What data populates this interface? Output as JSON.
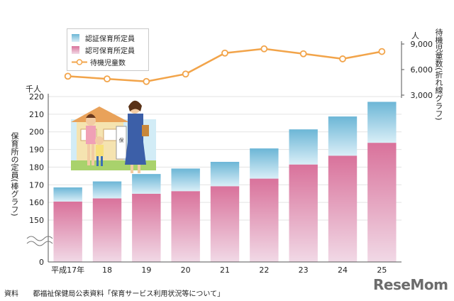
{
  "chart_data": {
    "type": "bar",
    "left_unit": "千人",
    "left_axis_label": "保育所の定員(棒グラフ)",
    "right_unit": "人",
    "right_axis_label": "待機児童数(折れ線グラフ)",
    "categories": [
      "平成17年",
      "18",
      "19",
      "20",
      "21",
      "22",
      "23",
      "24",
      "25"
    ],
    "y_ticks": [
      "150",
      "160",
      "170",
      "180",
      "190",
      "200",
      "210",
      "220"
    ],
    "y_zero_label": "0",
    "ylim": [
      145,
      220
    ],
    "y2_ticks": [
      "3,000",
      "6,000",
      "9,000"
    ],
    "y2lim": [
      3000,
      9000
    ],
    "legend": [
      "認証保育所定員",
      "認可保育所定員",
      "待機児童数"
    ],
    "series": [
      {
        "name": "認可保育所定員",
        "type": "bar",
        "color": "#d9729b",
        "values": [
          160.5,
          162.3,
          164.9,
          166.4,
          169.2,
          173.5,
          181.5,
          186.5,
          193.8
        ]
      },
      {
        "name": "認証保育所定員",
        "type": "bar",
        "color": "#6cb6d6",
        "values": [
          8.0,
          9.6,
          11.2,
          12.8,
          13.8,
          17.1,
          19.9,
          22.2,
          23.2
        ]
      },
      {
        "name": "待機児童数",
        "type": "line",
        "color": "#f2a44a",
        "values": [
          5221,
          4907,
          4602,
          5479,
          7939,
          8435,
          7855,
          7257,
          8117
        ]
      }
    ]
  },
  "footer": {
    "label": "資料",
    "text": "都福祉保健局公表資料「保育サービス利用状況等について」"
  },
  "logo": "ReseMom"
}
